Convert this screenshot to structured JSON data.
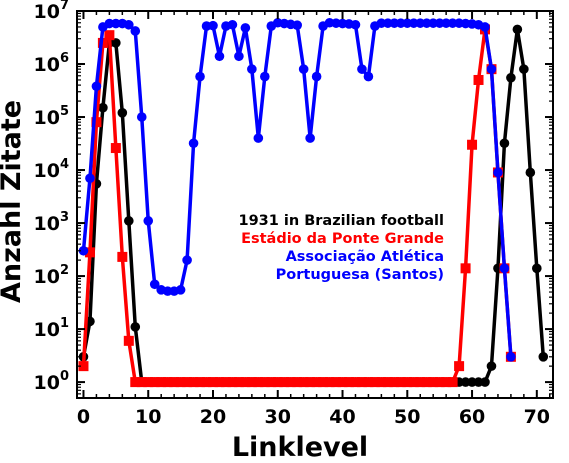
{
  "chart_data": {
    "type": "line",
    "xlabel": "Linklevel",
    "ylabel": "Anzahl Zitate",
    "y_scale": "log",
    "xlim": [
      -1,
      72.5
    ],
    "ylim_log10": [
      -0.3,
      7
    ],
    "x_ticks": [
      0,
      10,
      20,
      30,
      40,
      50,
      60,
      70
    ],
    "y_ticks": [
      {
        "base": "10",
        "exp": "0",
        "value": 1
      },
      {
        "base": "10",
        "exp": "1",
        "value": 10
      },
      {
        "base": "10",
        "exp": "2",
        "value": 100
      },
      {
        "base": "10",
        "exp": "3",
        "value": 1000
      },
      {
        "base": "10",
        "exp": "4",
        "value": 10000
      },
      {
        "base": "10",
        "exp": "5",
        "value": 100000
      },
      {
        "base": "10",
        "exp": "6",
        "value": 1000000
      },
      {
        "base": "10",
        "exp": "7",
        "value": 10000000
      }
    ],
    "grid": false,
    "legend_position": "lower-right (inside plot)",
    "legend_lines": [
      {
        "text": "1931 in Brazilian football",
        "color": "#000000"
      },
      {
        "text": "Estádio da Ponte Grande",
        "color": "#ff0000"
      },
      {
        "text": "Associação Atlética",
        "color": "#0000ff"
      },
      {
        "text": "Portuguesa (Santos)",
        "color": "#0000ff"
      }
    ],
    "series": [
      {
        "color": "#000000",
        "marker": "circle",
        "points": [
          [
            0,
            3
          ],
          [
            1,
            14
          ],
          [
            2,
            5500
          ],
          [
            3,
            150000
          ],
          [
            4,
            2500000
          ],
          [
            5,
            2500000
          ],
          [
            6,
            120000
          ],
          [
            7,
            1100
          ],
          [
            8,
            11
          ],
          [
            9,
            1
          ],
          [
            10,
            1
          ],
          [
            11,
            1
          ],
          [
            12,
            1
          ],
          [
            13,
            1
          ],
          [
            14,
            1
          ],
          [
            15,
            1
          ],
          [
            16,
            1
          ],
          [
            17,
            1
          ],
          [
            18,
            1
          ],
          [
            19,
            1
          ],
          [
            20,
            1
          ],
          [
            21,
            1
          ],
          [
            22,
            1
          ],
          [
            23,
            1
          ],
          [
            24,
            1
          ],
          [
            25,
            1
          ],
          [
            26,
            1
          ],
          [
            27,
            1
          ],
          [
            28,
            1
          ],
          [
            29,
            1
          ],
          [
            30,
            1
          ],
          [
            31,
            1
          ],
          [
            32,
            1
          ],
          [
            33,
            1
          ],
          [
            34,
            1
          ],
          [
            35,
            1
          ],
          [
            36,
            1
          ],
          [
            37,
            1
          ],
          [
            38,
            1
          ],
          [
            39,
            1
          ],
          [
            40,
            1
          ],
          [
            41,
            1
          ],
          [
            42,
            1
          ],
          [
            43,
            1
          ],
          [
            44,
            1
          ],
          [
            45,
            1
          ],
          [
            46,
            1
          ],
          [
            47,
            1
          ],
          [
            48,
            1
          ],
          [
            49,
            1
          ],
          [
            50,
            1
          ],
          [
            51,
            1
          ],
          [
            52,
            1
          ],
          [
            53,
            1
          ],
          [
            54,
            1
          ],
          [
            55,
            1
          ],
          [
            56,
            1
          ],
          [
            57,
            1
          ],
          [
            58,
            1
          ],
          [
            59,
            1
          ],
          [
            60,
            1
          ],
          [
            61,
            1
          ],
          [
            62,
            1
          ],
          [
            63,
            2
          ],
          [
            64,
            140
          ],
          [
            65,
            32000
          ],
          [
            66,
            550000
          ],
          [
            67,
            4500000
          ],
          [
            68,
            800000
          ],
          [
            69,
            9000
          ],
          [
            70,
            140
          ],
          [
            71,
            3
          ]
        ]
      },
      {
        "color": "#ff0000",
        "marker": "square",
        "points": [
          [
            0,
            2
          ],
          [
            1,
            280
          ],
          [
            2,
            80000
          ],
          [
            3,
            2500000
          ],
          [
            4,
            3500000
          ],
          [
            5,
            26000
          ],
          [
            6,
            230
          ],
          [
            7,
            6
          ],
          [
            8,
            1
          ],
          [
            9,
            1
          ],
          [
            10,
            1
          ],
          [
            11,
            1
          ],
          [
            12,
            1
          ],
          [
            13,
            1
          ],
          [
            14,
            1
          ],
          [
            15,
            1
          ],
          [
            16,
            1
          ],
          [
            17,
            1
          ],
          [
            18,
            1
          ],
          [
            19,
            1
          ],
          [
            20,
            1
          ],
          [
            21,
            1
          ],
          [
            22,
            1
          ],
          [
            23,
            1
          ],
          [
            24,
            1
          ],
          [
            25,
            1
          ],
          [
            26,
            1
          ],
          [
            27,
            1
          ],
          [
            28,
            1
          ],
          [
            29,
            1
          ],
          [
            30,
            1
          ],
          [
            31,
            1
          ],
          [
            32,
            1
          ],
          [
            33,
            1
          ],
          [
            34,
            1
          ],
          [
            35,
            1
          ],
          [
            36,
            1
          ],
          [
            37,
            1
          ],
          [
            38,
            1
          ],
          [
            39,
            1
          ],
          [
            40,
            1
          ],
          [
            41,
            1
          ],
          [
            42,
            1
          ],
          [
            43,
            1
          ],
          [
            44,
            1
          ],
          [
            45,
            1
          ],
          [
            46,
            1
          ],
          [
            47,
            1
          ],
          [
            48,
            1
          ],
          [
            49,
            1
          ],
          [
            50,
            1
          ],
          [
            51,
            1
          ],
          [
            52,
            1
          ],
          [
            53,
            1
          ],
          [
            54,
            1
          ],
          [
            55,
            1
          ],
          [
            56,
            1
          ],
          [
            57,
            1
          ],
          [
            58,
            2
          ],
          [
            59,
            140
          ],
          [
            60,
            30000
          ],
          [
            61,
            500000
          ],
          [
            62,
            4500000
          ],
          [
            63,
            800000
          ],
          [
            64,
            9000
          ],
          [
            65,
            140
          ],
          [
            66,
            3
          ]
        ]
      },
      {
        "color": "#0000ff",
        "marker": "circle",
        "points": [
          [
            0,
            300
          ],
          [
            1,
            7000
          ],
          [
            2,
            380000
          ],
          [
            3,
            5000000
          ],
          [
            4,
            5800000
          ],
          [
            5,
            5800000
          ],
          [
            6,
            5800000
          ],
          [
            7,
            5500000
          ],
          [
            8,
            4200000
          ],
          [
            9,
            100000
          ],
          [
            10,
            1100
          ],
          [
            11,
            70
          ],
          [
            12,
            55
          ],
          [
            13,
            52
          ],
          [
            14,
            52
          ],
          [
            15,
            55
          ],
          [
            16,
            200
          ],
          [
            17,
            32000
          ],
          [
            18,
            580000
          ],
          [
            19,
            5200000
          ],
          [
            20,
            5300000
          ],
          [
            21,
            1400000
          ],
          [
            22,
            5200000
          ],
          [
            23,
            5500000
          ],
          [
            24,
            1400000
          ],
          [
            25,
            4800000
          ],
          [
            26,
            800000
          ],
          [
            27,
            40000
          ],
          [
            28,
            580000
          ],
          [
            29,
            5200000
          ],
          [
            30,
            6000000
          ],
          [
            31,
            5800000
          ],
          [
            32,
            5600000
          ],
          [
            33,
            5400000
          ],
          [
            34,
            800000
          ],
          [
            35,
            40000
          ],
          [
            36,
            580000
          ],
          [
            37,
            5200000
          ],
          [
            38,
            6000000
          ],
          [
            39,
            5900000
          ],
          [
            40,
            5800000
          ],
          [
            41,
            5700000
          ],
          [
            42,
            5500000
          ],
          [
            43,
            800000
          ],
          [
            44,
            580000
          ],
          [
            45,
            5200000
          ],
          [
            46,
            5900000
          ],
          [
            47,
            5900000
          ],
          [
            48,
            5900000
          ],
          [
            49,
            5900000
          ],
          [
            50,
            5900000
          ],
          [
            51,
            5900000
          ],
          [
            52,
            5900000
          ],
          [
            53,
            5900000
          ],
          [
            54,
            5900000
          ],
          [
            55,
            5900000
          ],
          [
            56,
            5900000
          ],
          [
            57,
            5900000
          ],
          [
            58,
            5900000
          ],
          [
            59,
            5800000
          ],
          [
            60,
            5700000
          ],
          [
            61,
            5500000
          ],
          [
            62,
            5000000
          ],
          [
            63,
            800000
          ],
          [
            64,
            9000
          ],
          [
            65,
            140
          ],
          [
            66,
            3
          ]
        ]
      }
    ]
  }
}
